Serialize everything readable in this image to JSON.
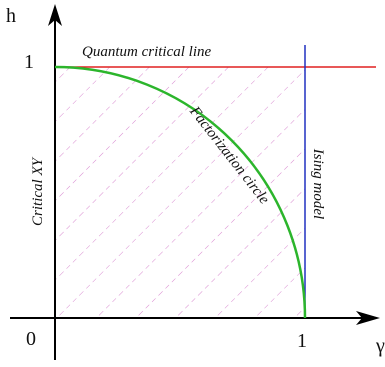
{
  "axes": {
    "y_label": "h",
    "x_label": "γ",
    "origin": "0",
    "y_one": "1",
    "x_one": "1"
  },
  "regions": {
    "top": "Quantum critical line",
    "left": "Critical XY",
    "right": "Ising model",
    "circle": "Factorization circle"
  }
}
